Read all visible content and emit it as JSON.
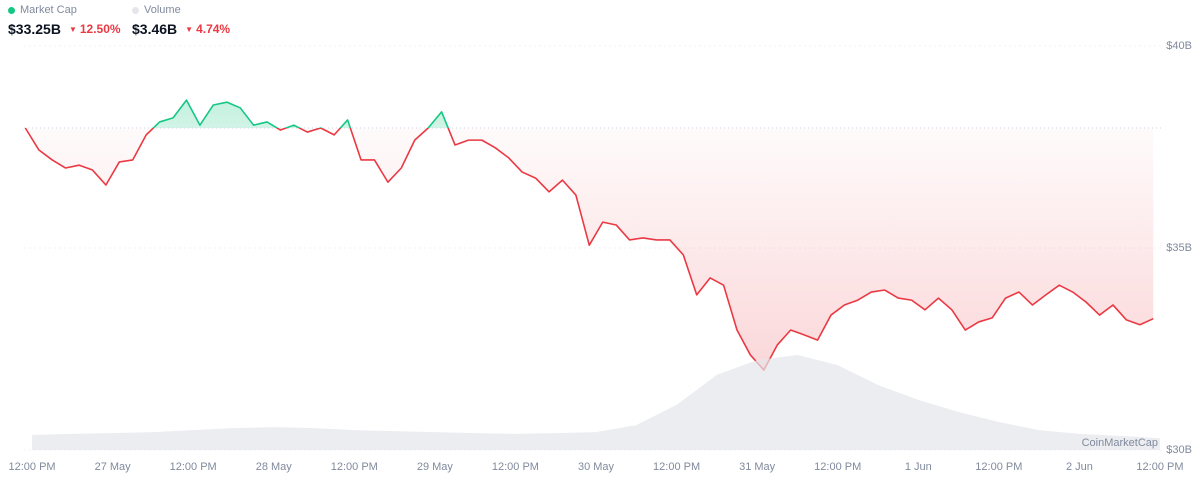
{
  "header": {
    "market_cap": {
      "label": "Market Cap",
      "value": "$33.25B",
      "change": "12.50%"
    },
    "volume": {
      "label": "Volume",
      "value": "$3.46B",
      "change": "4.74%"
    }
  },
  "chart_data": {
    "type": "line",
    "x": [
      -1,
      1,
      3,
      5,
      7,
      9,
      11,
      13,
      15,
      17,
      19,
      21,
      23,
      25,
      27,
      29,
      31,
      33,
      35,
      37,
      39,
      41,
      43,
      45,
      47,
      49,
      51,
      53,
      55,
      57,
      59,
      61,
      63,
      65,
      67,
      69,
      71,
      73,
      75,
      77,
      79,
      81,
      83,
      85,
      87,
      89,
      91,
      93,
      95,
      97,
      99,
      101,
      103,
      105,
      107,
      109,
      111,
      113,
      115,
      117,
      119,
      121,
      123,
      125,
      127,
      129,
      131,
      133,
      135,
      137,
      139,
      141,
      143,
      145,
      147,
      149,
      151,
      153,
      155,
      157,
      159,
      161,
      163,
      165,
      167
    ],
    "series": [
      {
        "name": "Market Cap",
        "color": "#ea3943",
        "up_color": "#16c784",
        "values": [
          37.97,
          37.43,
          37.18,
          36.98,
          37.05,
          36.93,
          36.56,
          37.13,
          37.18,
          37.8,
          38.12,
          38.22,
          38.66,
          38.04,
          38.54,
          38.61,
          38.47,
          38.04,
          38.12,
          37.92,
          38.04,
          37.87,
          37.97,
          37.8,
          38.17,
          37.18,
          37.18,
          36.63,
          36.98,
          37.67,
          37.97,
          38.37,
          37.55,
          37.67,
          37.67,
          37.48,
          37.23,
          36.88,
          36.73,
          36.39,
          36.68,
          36.31,
          35.07,
          35.64,
          35.57,
          35.2,
          35.25,
          35.2,
          35.2,
          34.83,
          33.84,
          34.26,
          34.08,
          32.97,
          32.35,
          31.98,
          32.6,
          32.97,
          32.85,
          32.72,
          33.34,
          33.59,
          33.71,
          33.91,
          33.96,
          33.76,
          33.71,
          33.47,
          33.76,
          33.47,
          32.97,
          33.17,
          33.27,
          33.76,
          33.91,
          33.59,
          33.84,
          34.08,
          33.91,
          33.66,
          33.34,
          33.59,
          33.22,
          33.1,
          33.25
        ]
      },
      {
        "name": "Volume",
        "color": "#e4e6ea",
        "axis": "y2",
        "x": [
          0,
          6,
          12,
          18,
          24,
          30,
          36,
          42,
          48,
          54,
          60,
          66,
          72,
          78,
          84,
          90,
          96,
          102,
          108,
          114,
          120,
          126,
          132,
          138,
          144,
          150,
          156,
          162,
          168
        ],
        "values": [
          4.5,
          4.8,
          5.0,
          5.3,
          5.9,
          6.5,
          6.8,
          6.5,
          5.9,
          5.6,
          5.3,
          5.0,
          4.8,
          5.0,
          5.3,
          7.4,
          13.4,
          22.3,
          26.7,
          28.2,
          25.2,
          19.3,
          14.9,
          11.3,
          8.3,
          5.9,
          4.8,
          4.2,
          3.5
        ]
      }
    ],
    "xlim": [
      -1.2,
      168.6
    ],
    "xticks": [
      {
        "value": 0,
        "label": "12:00 PM"
      },
      {
        "value": 12,
        "label": "27 May"
      },
      {
        "value": 24,
        "label": "12:00 PM"
      },
      {
        "value": 36,
        "label": "28 May"
      },
      {
        "value": 48,
        "label": "12:00 PM"
      },
      {
        "value": 60,
        "label": "29 May"
      },
      {
        "value": 72,
        "label": "12:00 PM"
      },
      {
        "value": 84,
        "label": "30 May"
      },
      {
        "value": 96,
        "label": "12:00 PM"
      },
      {
        "value": 108,
        "label": "31 May"
      },
      {
        "value": 120,
        "label": "12:00 PM"
      },
      {
        "value": 132,
        "label": "1 Jun"
      },
      {
        "value": 144,
        "label": "12:00 PM"
      },
      {
        "value": 156,
        "label": "2 Jun"
      },
      {
        "value": 168,
        "label": "12:00 PM"
      }
    ],
    "ylim": [
      30,
      40
    ],
    "yticks": [
      {
        "value": 30,
        "label": "$30B"
      },
      {
        "value": 35,
        "label": "$35B"
      },
      {
        "value": 40,
        "label": "$40B"
      }
    ],
    "y2lim": [
      0,
      120
    ],
    "grid": true,
    "watermark": "CoinMarketCap"
  }
}
